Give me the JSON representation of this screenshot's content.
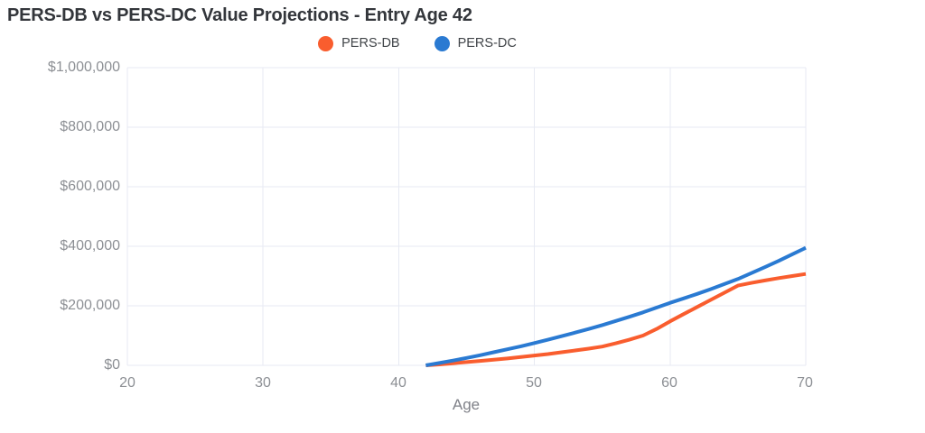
{
  "page": {
    "background": "#ffffff"
  },
  "chart_data": {
    "type": "line",
    "title": "PERS-DB vs PERS-DC Value Projections - Entry Age 42",
    "xlabel": "Age",
    "ylabel": "",
    "x_range": [
      20,
      70
    ],
    "y_range": [
      0,
      1000000
    ],
    "x_ticks": [
      20,
      30,
      40,
      50,
      60,
      70
    ],
    "y_ticks": [
      0,
      200000,
      400000,
      600000,
      800000,
      1000000
    ],
    "y_tick_labels": [
      "$0",
      "$200,000",
      "$400,000",
      "$600,000",
      "$800,000",
      "$1,000,000"
    ],
    "grid": true,
    "grid_color": "#e7eaf3",
    "legend_position": "top-center",
    "line_width": 4,
    "series": [
      {
        "name": "PERS-DB",
        "color": "#f95d2e",
        "x": [
          42,
          43,
          44,
          45,
          46,
          47,
          48,
          49,
          50,
          51,
          52,
          53,
          54,
          55,
          56,
          57,
          58,
          59,
          60,
          61,
          62,
          63,
          64,
          65,
          66,
          67,
          68,
          69,
          70
        ],
        "values": [
          0,
          3000,
          7000,
          11000,
          15000,
          19000,
          23000,
          28000,
          33000,
          38000,
          44000,
          50000,
          56000,
          63000,
          74000,
          86000,
          100000,
          122000,
          148000,
          172000,
          196000,
          220000,
          244000,
          268000,
          277000,
          285000,
          293000,
          300000,
          307000
        ]
      },
      {
        "name": "PERS-DC",
        "color": "#2a7ad2",
        "x": [
          42,
          43,
          44,
          45,
          46,
          47,
          48,
          49,
          50,
          51,
          52,
          53,
          54,
          55,
          56,
          57,
          58,
          59,
          60,
          61,
          62,
          63,
          64,
          65,
          66,
          67,
          68,
          69,
          70
        ],
        "values": [
          0,
          8000,
          16000,
          25000,
          34000,
          44000,
          54000,
          64000,
          75000,
          86000,
          98000,
          110000,
          122000,
          135000,
          149000,
          163000,
          178000,
          194000,
          210000,
          225000,
          240000,
          256000,
          273000,
          290000,
          310000,
          330000,
          351000,
          373000,
          395000
        ]
      }
    ]
  }
}
